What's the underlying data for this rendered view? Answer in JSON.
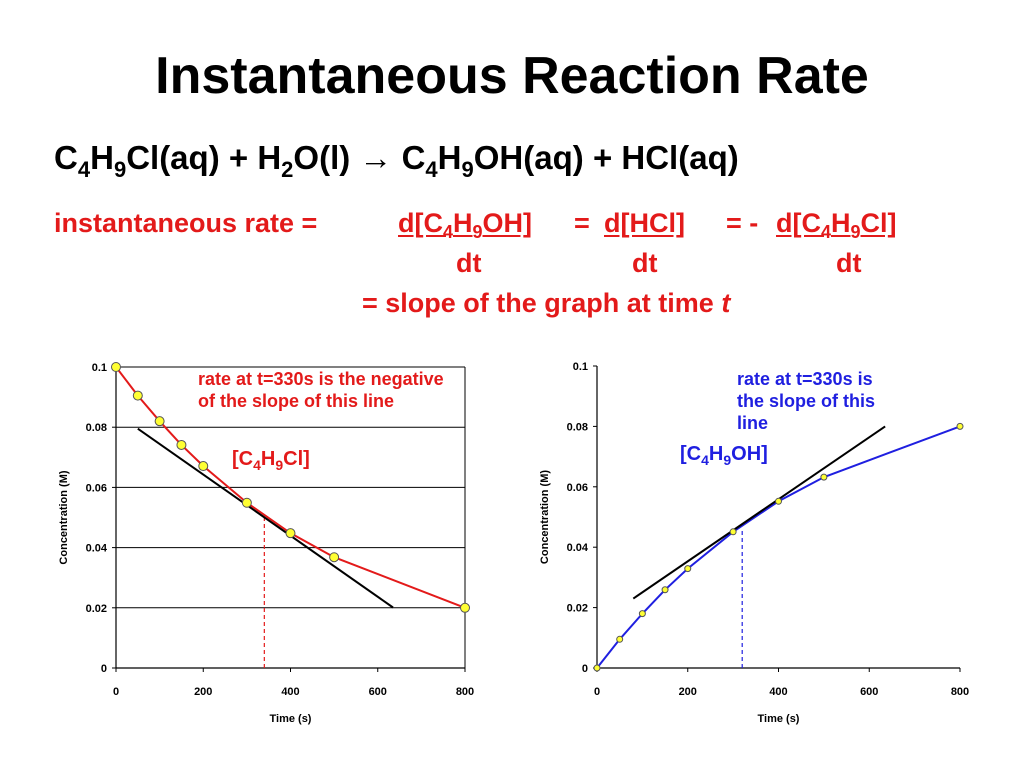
{
  "slide": {
    "title": "Instantaneous Reaction Rate",
    "equation": {
      "reactant1": "C4H9Cl(aq)",
      "plus1": "+",
      "reactant2": "H2O(l)",
      "arrow": "→",
      "product1": "C4H9OH(aq)",
      "plus2": "+",
      "product2": "HCl(aq)"
    },
    "rate_expression": {
      "prefix": "instantaneous rate =",
      "term1": "d[C4H9OH]",
      "eq2": "=",
      "term2": "d[HCl]",
      "eq3": "= -",
      "term3": "d[C4H9Cl]",
      "denominator": "dt",
      "slope_text": "= slope of the graph at time",
      "slope_var": "t"
    }
  },
  "colors": {
    "red": "#e31a1a",
    "blue": "#1f1fe0",
    "marker_fill": "#ffff33",
    "tangent": "#000000"
  },
  "chart_data": [
    {
      "type": "line",
      "series": [
        {
          "name": "[C4H9Cl]",
          "x": [
            0,
            50,
            100,
            150,
            200,
            300,
            400,
            500,
            800
          ],
          "y": [
            0.1,
            0.0905,
            0.082,
            0.0741,
            0.0671,
            0.0549,
            0.0448,
            0.0368,
            0.02
          ]
        }
      ],
      "tangent": {
        "x": [
          50,
          635
        ],
        "y": [
          0.0795,
          0.0201
        ],
        "color": "black"
      },
      "marker_line": {
        "x": 340,
        "y_range": [
          0,
          0.0505
        ]
      },
      "annotation": "rate at t=330s is the negative of the slope of this line",
      "series_label": "[C4H9Cl]",
      "xlabel": "Time (s)",
      "ylabel": "Concentration (M)",
      "xticks": [
        "0",
        "200",
        "400",
        "600",
        "800"
      ],
      "yticks": [
        "0",
        "0.02",
        "0.04",
        "0.06",
        "0.08",
        "0.1"
      ],
      "xlim": [
        0,
        800
      ],
      "ylim": [
        0,
        0.1
      ],
      "grid": "horizontal"
    },
    {
      "type": "line",
      "series": [
        {
          "name": "[C4H9OH]",
          "x": [
            0,
            50,
            100,
            150,
            200,
            300,
            400,
            500,
            800
          ],
          "y": [
            0,
            0.0095,
            0.018,
            0.0259,
            0.0329,
            0.0451,
            0.0552,
            0.0632,
            0.08
          ]
        }
      ],
      "tangent": {
        "x": [
          80,
          635
        ],
        "y": [
          0.023,
          0.08
        ],
        "color": "black"
      },
      "marker_line": {
        "x": 320,
        "y_range": [
          0,
          0.046
        ]
      },
      "annotation": "rate at t=330s is the slope of this line",
      "series_label": "[C4H9OH]",
      "xlabel": "Time (s)",
      "ylabel": "Concentration (M)",
      "xticks": [
        "0",
        "200",
        "400",
        "600",
        "800"
      ],
      "yticks": [
        "0",
        "0.02",
        "0.04",
        "0.06",
        "0.08",
        "0.1"
      ],
      "xlim": [
        0,
        800
      ],
      "ylim": [
        0,
        0.1
      ],
      "grid": "none"
    }
  ]
}
